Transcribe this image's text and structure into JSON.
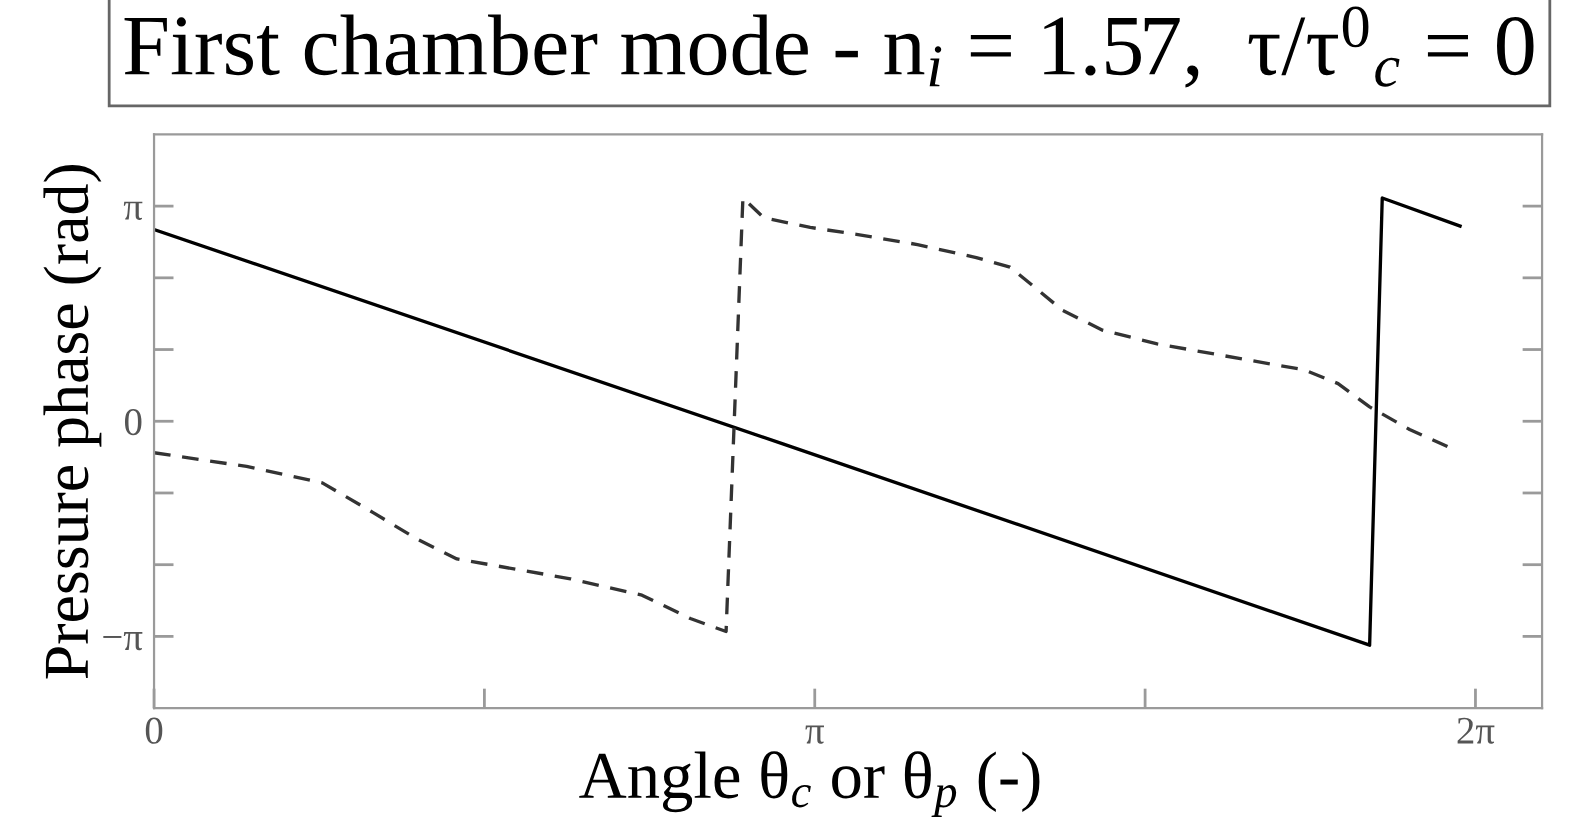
{
  "chart_data": {
    "type": "line",
    "title": "First chamber mode - n$_{i}$ = 1.57,  τ/τ$^{0}$$_{c}$ = 0",
    "xlabel": "Angle θ$_{c}$ or θ$_{p}$ (-)",
    "ylabel": "Pressure phase (rad)",
    "xlim": [
      0,
      6.6
    ],
    "xticks": [
      0,
      {
        "value": 1.5708,
        "label": null
      },
      {
        "value": 3.1416,
        "label": "π"
      },
      {
        "value": 4.7124,
        "label": null
      },
      {
        "value": 6.2832,
        "label": "2π"
      }
    ],
    "ylim": [
      -4.1888,
      4.1888
    ],
    "yticks": [
      {
        "value": -3.1416,
        "label": "−π"
      },
      {
        "value": -2.0944,
        "label": null
      },
      {
        "value": -1.0472,
        "label": null
      },
      0,
      {
        "value": 1.0472,
        "label": null
      },
      {
        "value": 2.0944,
        "label": null
      },
      {
        "value": 3.1416,
        "label": "π"
      }
    ],
    "grid": false,
    "legend": false,
    "series": [
      {
        "color": "#000000",
        "line_style": "solid",
        "x": [
          0,
          2.99,
          5.78,
          5.84,
          6.21
        ],
        "values": [
          2.8,
          -0.33,
          -3.27,
          3.26,
          2.85
        ]
      },
      {
        "color": "#333333",
        "line_style": "dashed",
        "x": [
          0,
          0.44,
          0.8,
          1.04,
          1.25,
          1.44,
          1.98,
          2.32,
          2.55,
          2.72,
          2.8,
          2.9,
          3.12,
          3.34,
          3.63,
          3.91,
          4.07,
          4.17,
          4.32,
          4.51,
          4.77,
          5.21,
          5.47,
          5.63,
          5.78,
          5.97,
          6.15
        ],
        "values": [
          -0.46,
          -0.66,
          -0.9,
          -1.33,
          -1.72,
          -2.01,
          -2.3,
          -2.54,
          -2.88,
          -3.07,
          3.26,
          2.97,
          2.83,
          2.73,
          2.58,
          2.39,
          2.25,
          2.0,
          1.62,
          1.33,
          1.13,
          0.89,
          0.75,
          0.55,
          0.21,
          -0.12,
          -0.37
        ]
      }
    ]
  }
}
